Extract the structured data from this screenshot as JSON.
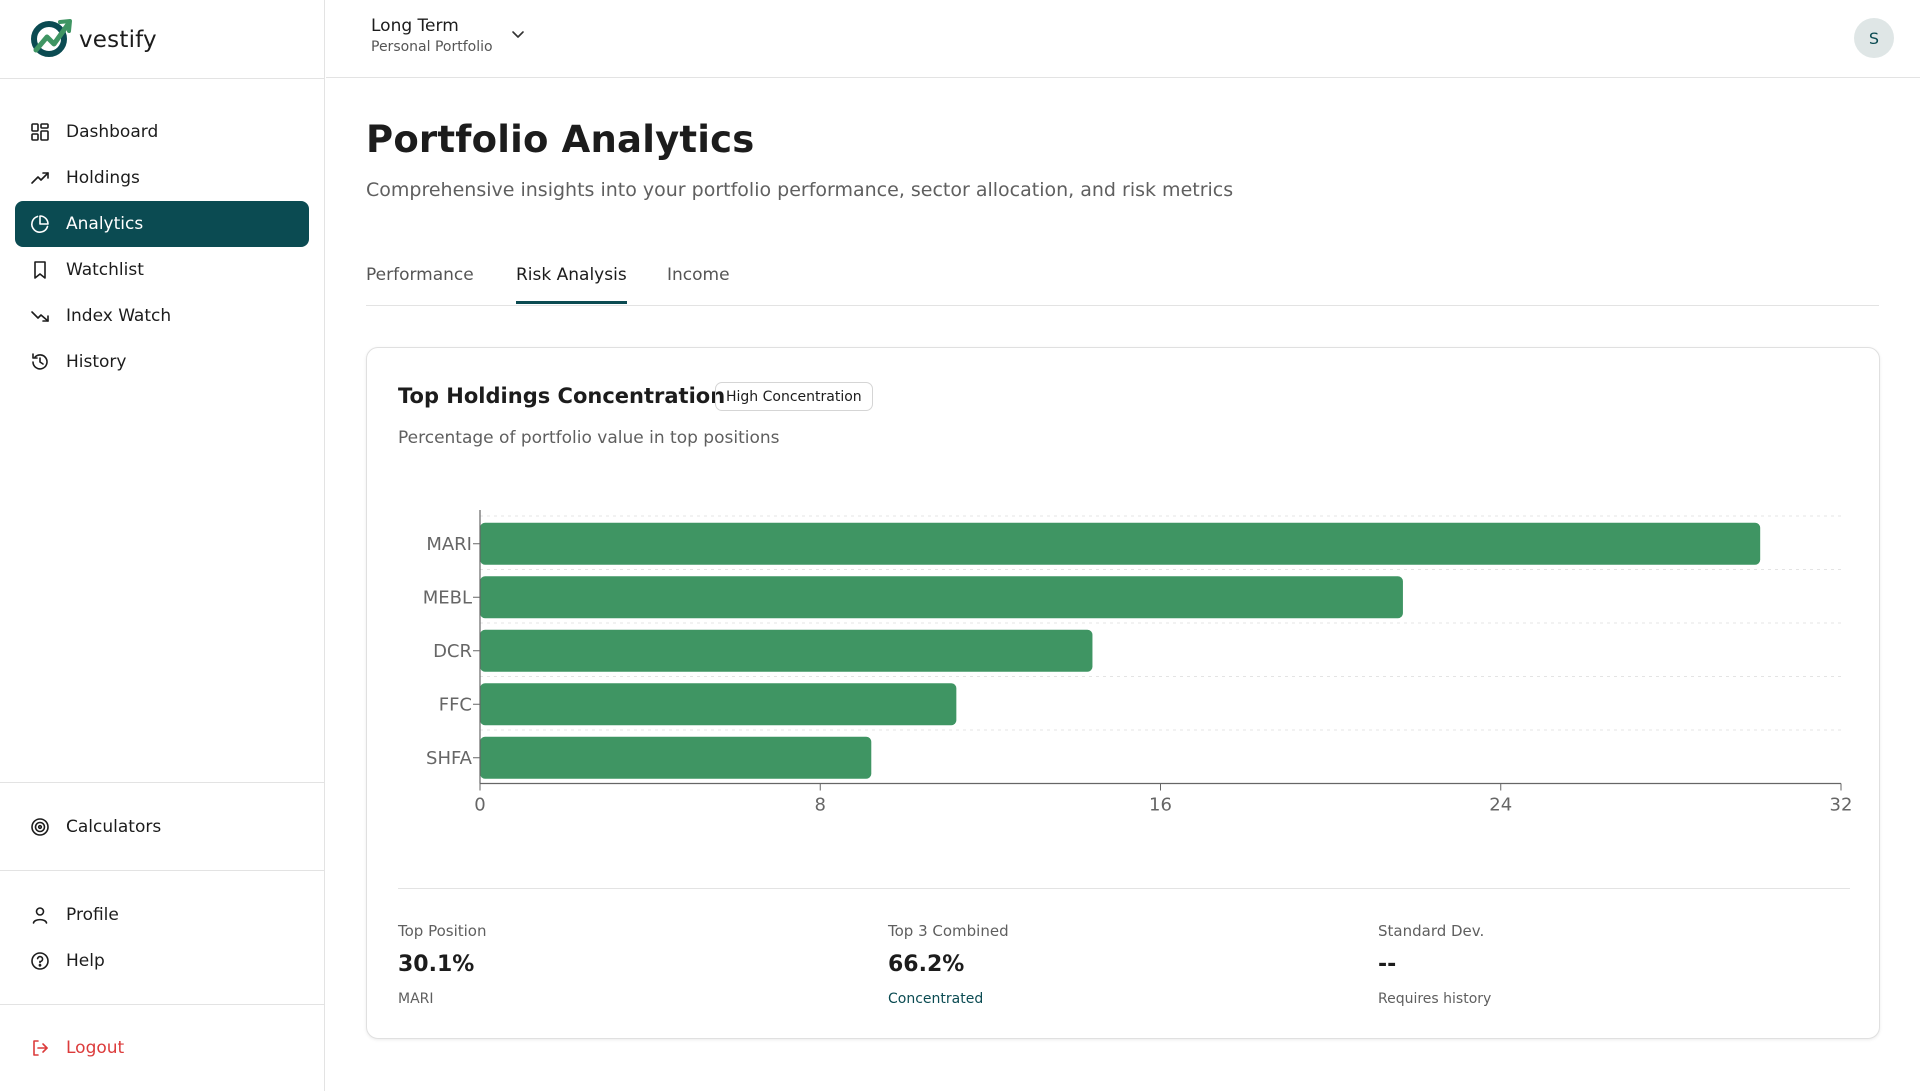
{
  "app": {
    "brand": "vestify",
    "colors": {
      "primary": "#0b4b52",
      "bar": "#3f9563",
      "danger": "#dc3b3b"
    }
  },
  "sidebar": {
    "main_items": [
      {
        "label": "Dashboard",
        "icon": "dashboard-icon",
        "active": false
      },
      {
        "label": "Holdings",
        "icon": "trending-up-icon",
        "active": false
      },
      {
        "label": "Analytics",
        "icon": "pie-chart-icon",
        "active": true
      },
      {
        "label": "Watchlist",
        "icon": "bookmark-icon",
        "active": false
      },
      {
        "label": "Index Watch",
        "icon": "trending-down-icon",
        "active": false
      },
      {
        "label": "History",
        "icon": "history-icon",
        "active": false
      }
    ],
    "tools": [
      {
        "label": "Calculators",
        "icon": "target-icon"
      }
    ],
    "account": [
      {
        "label": "Profile",
        "icon": "user-icon"
      },
      {
        "label": "Help",
        "icon": "help-circle-icon"
      }
    ],
    "logout_label": "Logout"
  },
  "header": {
    "portfolio_name": "Long Term",
    "portfolio_type": "Personal Portfolio",
    "avatar_initial": "S"
  },
  "page": {
    "title": "Portfolio Analytics",
    "subtitle": "Comprehensive insights into your portfolio performance, sector allocation, and risk metrics",
    "tabs": [
      {
        "label": "Performance",
        "active": false
      },
      {
        "label": "Risk Analysis",
        "active": true
      },
      {
        "label": "Income",
        "active": false
      }
    ]
  },
  "card": {
    "title": "Top Holdings Concentration",
    "badge": "High Concentration",
    "description": "Percentage of portfolio value in top positions",
    "stats": [
      {
        "label": "Top Position",
        "value": "30.1%",
        "note": "MARI",
        "accent": false
      },
      {
        "label": "Top 3 Combined",
        "value": "66.2%",
        "note": "Concentrated",
        "accent": true
      },
      {
        "label": "Standard Dev.",
        "value": "--",
        "note": "Requires history",
        "accent": false
      }
    ]
  },
  "chart_data": {
    "type": "bar",
    "orientation": "horizontal",
    "categories": [
      "MARI",
      "MEBL",
      "DCR",
      "FFC",
      "SHFA"
    ],
    "values": [
      30.1,
      21.7,
      14.4,
      11.2,
      9.2
    ],
    "xlim": [
      0,
      32
    ],
    "xticks": [
      "0",
      "8",
      "16",
      "24",
      "32"
    ],
    "grid": "horizontal-dashed",
    "color": "#3f9563"
  }
}
